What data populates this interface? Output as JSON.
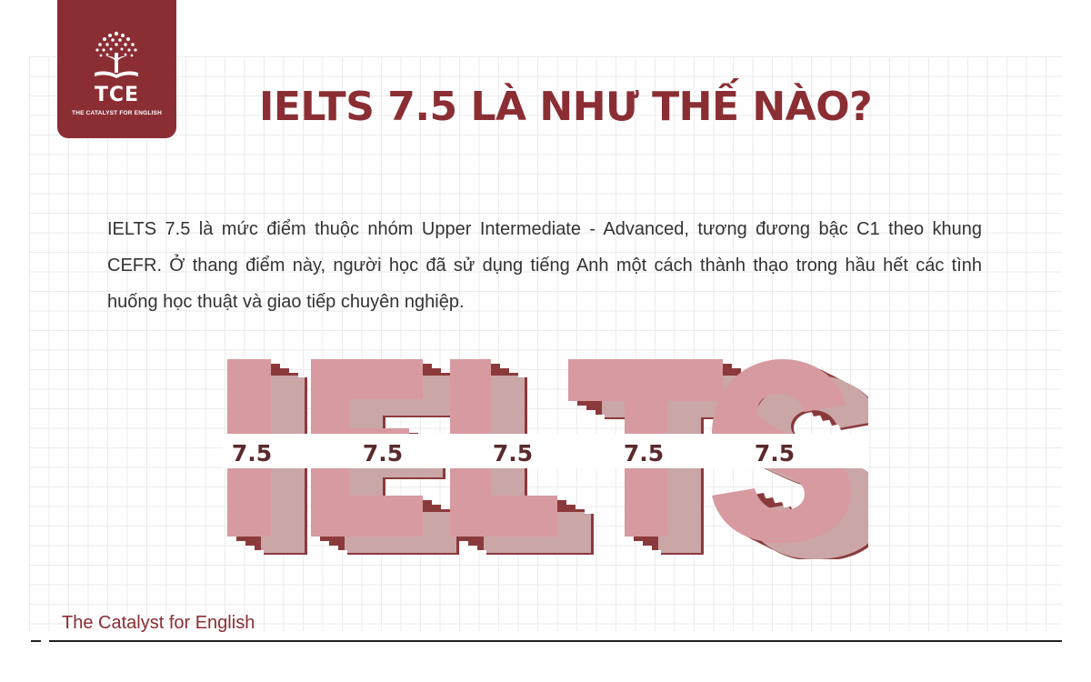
{
  "logo": {
    "abbr": "TCE",
    "tagline": "THE CATALYST FOR ENGLISH",
    "icon": "tree-book-icon",
    "bg_color": "#8b2e34"
  },
  "title": "IELTS 7.5 LÀ NHƯ THẾ NÀO?",
  "intro": "IELTS 7.5 là mức điểm thuộc nhóm Upper Intermediate - Advanced, tương đương bậc C1 theo khung CEFR. Ở thang điểm này, người học đã sử dụng tiếng Anh một cách thành thạo trong hầu hết các tình huống học thuật và giao tiếp chuyên nghiệp.",
  "graphic": {
    "letters": [
      "I",
      "E",
      "L",
      "T",
      "S"
    ],
    "band_label": "7.5",
    "colors": {
      "face": "#d79aa0",
      "shadow": "#8b3a3c"
    }
  },
  "footer": {
    "brand": "The Catalyst for English"
  },
  "colors": {
    "accent": "#8b2e34",
    "text": "#333333",
    "grid": "#ececec"
  }
}
